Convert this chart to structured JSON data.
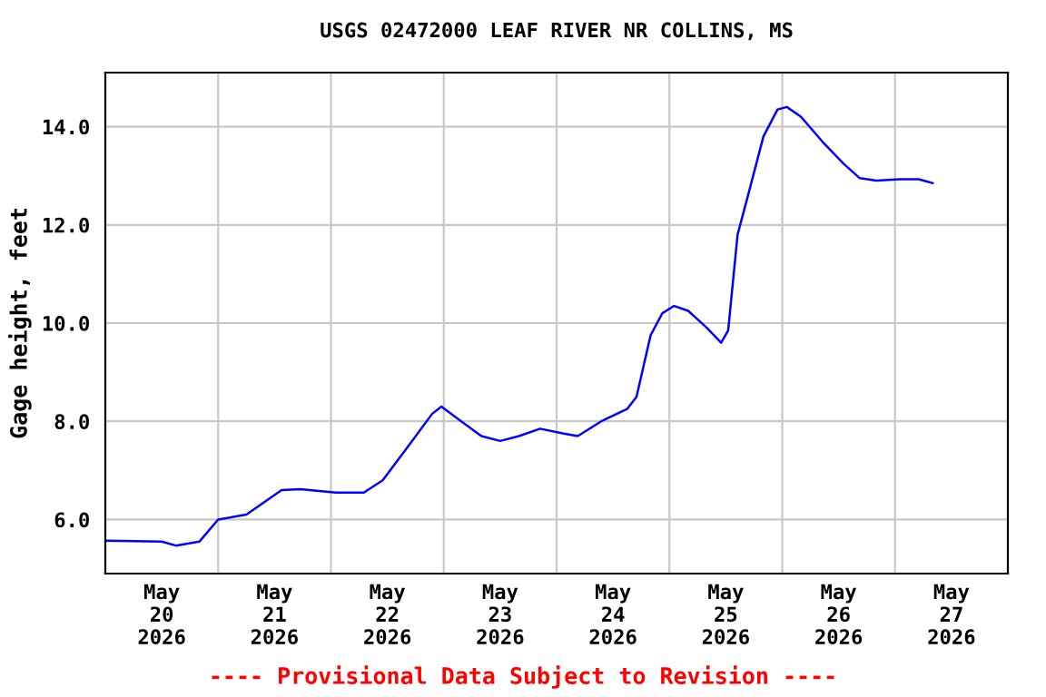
{
  "chart_data": {
    "type": "line",
    "title": "USGS 02472000 LEAF RIVER NR COLLINS, MS",
    "ylabel": "Gage height, feet",
    "annotations": [
      "---- Provisional Data Subject to Revision ----"
    ],
    "x": [
      "2026-05-20T00:00",
      "2026-05-20T12:00",
      "2026-05-20T15:00",
      "2026-05-20T20:00",
      "2026-05-21T00:00",
      "2026-05-21T06:00",
      "2026-05-21T09:00",
      "2026-05-21T13:30",
      "2026-05-21T17:30",
      "2026-05-22T01:00",
      "2026-05-22T07:00",
      "2026-05-22T11:00",
      "2026-05-22T16:30",
      "2026-05-22T21:30",
      "2026-05-22T23:30",
      "2026-05-23T03:00",
      "2026-05-23T08:00",
      "2026-05-23T12:00",
      "2026-05-23T16:00",
      "2026-05-23T20:30",
      "2026-05-24T01:30",
      "2026-05-24T04:30",
      "2026-05-24T09:30",
      "2026-05-24T15:00",
      "2026-05-24T17:00",
      "2026-05-24T20:00",
      "2026-05-24T22:30",
      "2026-05-25T01:00",
      "2026-05-25T04:00",
      "2026-05-25T08:00",
      "2026-05-25T11:00",
      "2026-05-25T12:30",
      "2026-05-25T14:30",
      "2026-05-25T17:00",
      "2026-05-25T20:00",
      "2026-05-25T23:00",
      "2026-05-26T01:00",
      "2026-05-26T04:00",
      "2026-05-26T08:30",
      "2026-05-26T13:00",
      "2026-05-26T16:30",
      "2026-05-26T20:00",
      "2026-05-27T01:00",
      "2026-05-27T05:00",
      "2026-05-27T08:00"
    ],
    "series": [
      {
        "color": "#0000ff",
        "values": [
          5.57,
          5.55,
          5.47,
          5.55,
          6.0,
          6.1,
          6.3,
          6.6,
          6.62,
          6.55,
          6.55,
          6.8,
          7.5,
          8.15,
          8.3,
          8.05,
          7.7,
          7.6,
          7.7,
          7.85,
          7.75,
          7.7,
          8.0,
          8.25,
          8.5,
          9.75,
          10.2,
          10.35,
          10.25,
          9.9,
          9.6,
          9.85,
          11.8,
          12.7,
          13.8,
          14.35,
          14.4,
          14.2,
          13.7,
          13.25,
          12.95,
          12.9,
          12.93,
          12.93,
          12.85
        ]
      }
    ],
    "xlim": [
      "2026-05-20T00:00",
      "2026-05-28T00:00"
    ],
    "xticks": [
      {
        "value": "2026-05-20T12:00",
        "label": "May\n20\n2026"
      },
      {
        "value": "2026-05-21T00:00",
        "label": null
      },
      {
        "value": "2026-05-21T12:00",
        "label": "May\n21\n2026"
      },
      {
        "value": "2026-05-22T00:00",
        "label": null
      },
      {
        "value": "2026-05-22T12:00",
        "label": "May\n22\n2026"
      },
      {
        "value": "2026-05-23T00:00",
        "label": null
      },
      {
        "value": "2026-05-23T12:00",
        "label": "May\n23\n2026"
      },
      {
        "value": "2026-05-24T00:00",
        "label": null
      },
      {
        "value": "2026-05-24T12:00",
        "label": "May\n24\n2026"
      },
      {
        "value": "2026-05-25T00:00",
        "label": null
      },
      {
        "value": "2026-05-25T12:00",
        "label": "May\n25\n2026"
      },
      {
        "value": "2026-05-26T00:00",
        "label": null
      },
      {
        "value": "2026-05-26T12:00",
        "label": "May\n26\n2026"
      },
      {
        "value": "2026-05-27T00:00",
        "label": null
      },
      {
        "value": "2026-05-27T12:00",
        "label": "May\n27\n2026"
      }
    ],
    "ylim": [
      4.9,
      15.1
    ],
    "yticks": [
      {
        "value": 6,
        "label": "6.0"
      },
      {
        "value": 8,
        "label": "8.0"
      },
      {
        "value": 10,
        "label": "10.0"
      },
      {
        "value": 12,
        "label": "12.0"
      },
      {
        "value": 14,
        "label": "14.0"
      }
    ],
    "grid": true
  }
}
